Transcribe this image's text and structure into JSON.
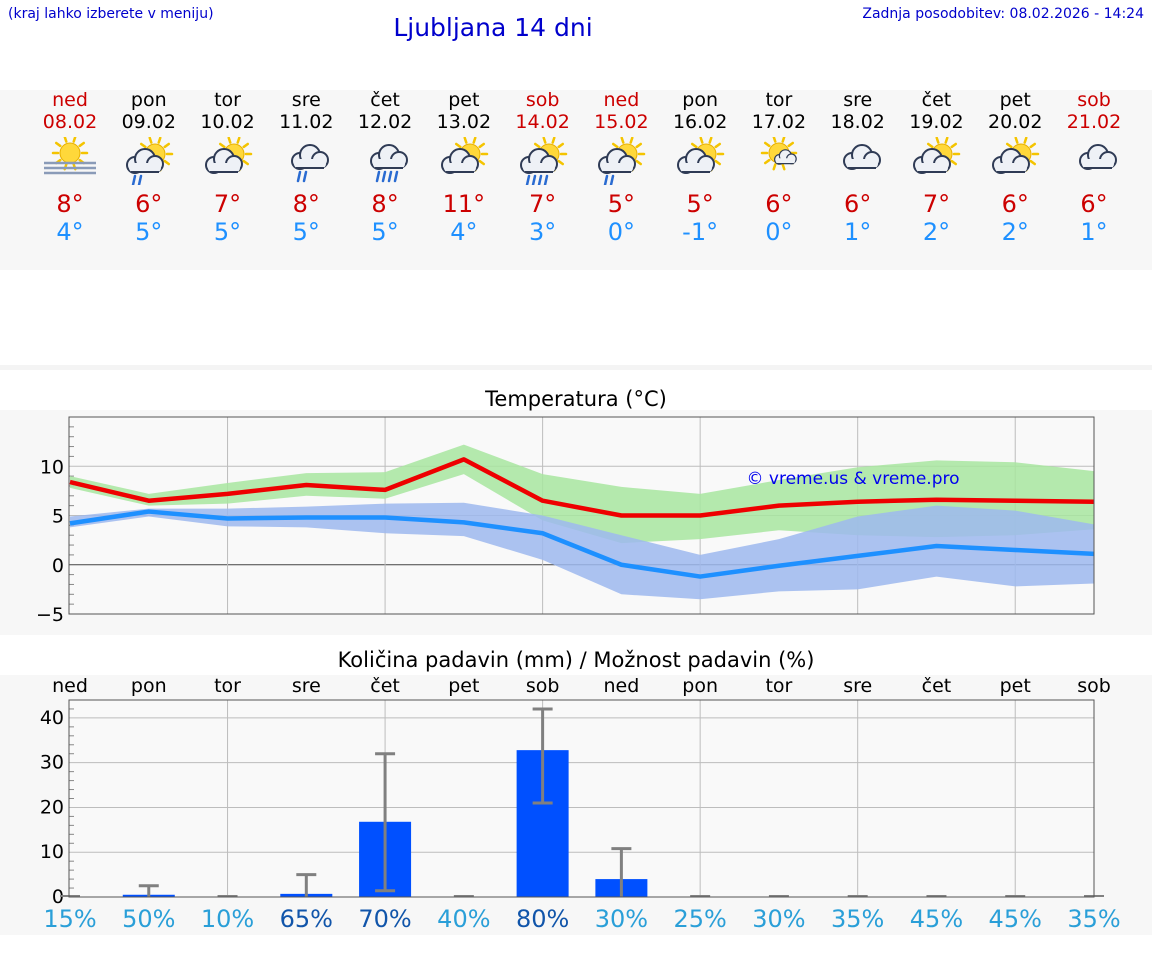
{
  "header": {
    "hint": "(kraj lahko izberete v meniju)",
    "title": "Ljubljana 14 dni",
    "updated": "Zadnja posodobitev: 08.02.2026 - 14:24"
  },
  "colors": {
    "weekend": "#cc0000",
    "max_line": "#ee0000",
    "min_line": "#1e90ff",
    "max_band": "#a8e6a0",
    "min_band": "#9db8ee",
    "bar": "#0050ff",
    "error": "#808080"
  },
  "days": [
    {
      "name": "ned",
      "date": "08.02",
      "weekend": true,
      "icon": "sun-fog-icon",
      "max": "8°",
      "min": "4°"
    },
    {
      "name": "pon",
      "date": "09.02",
      "weekend": false,
      "icon": "sun-cloud-rain-icon",
      "max": "6°",
      "min": "5°"
    },
    {
      "name": "tor",
      "date": "10.02",
      "weekend": false,
      "icon": "sun-cloud-icon",
      "max": "7°",
      "min": "5°"
    },
    {
      "name": "sre",
      "date": "11.02",
      "weekend": false,
      "icon": "cloud-rain-icon",
      "max": "8°",
      "min": "5°"
    },
    {
      "name": "čet",
      "date": "12.02",
      "weekend": false,
      "icon": "cloud-heavy-rain-icon",
      "max": "8°",
      "min": "5°"
    },
    {
      "name": "pet",
      "date": "13.02",
      "weekend": false,
      "icon": "sun-cloud-icon",
      "max": "11°",
      "min": "4°"
    },
    {
      "name": "sob",
      "date": "14.02",
      "weekend": true,
      "icon": "sun-cloud-heavy-rain-icon",
      "max": "7°",
      "min": "3°"
    },
    {
      "name": "ned",
      "date": "15.02",
      "weekend": true,
      "icon": "sun-cloud-rain-icon",
      "max": "5°",
      "min": "0°"
    },
    {
      "name": "pon",
      "date": "16.02",
      "weekend": false,
      "icon": "sun-cloud-icon",
      "max": "5°",
      "min": "-1°"
    },
    {
      "name": "tor",
      "date": "17.02",
      "weekend": false,
      "icon": "sun-small-cloud-icon",
      "max": "6°",
      "min": "0°"
    },
    {
      "name": "sre",
      "date": "18.02",
      "weekend": false,
      "icon": "cloud-icon",
      "max": "6°",
      "min": "1°"
    },
    {
      "name": "čet",
      "date": "19.02",
      "weekend": false,
      "icon": "sun-cloud-icon",
      "max": "7°",
      "min": "2°"
    },
    {
      "name": "pet",
      "date": "20.02",
      "weekend": false,
      "icon": "sun-cloud-icon",
      "max": "6°",
      "min": "2°"
    },
    {
      "name": "sob",
      "date": "21.02",
      "weekend": true,
      "icon": "cloud-icon",
      "max": "6°",
      "min": "1°"
    }
  ],
  "chart_data": [
    {
      "type": "line",
      "title": "Temperatura (°C)",
      "xlabel": "",
      "ylabel": "",
      "ylim": [
        -5,
        15
      ],
      "yticks": [
        -5,
        0,
        5,
        10
      ],
      "ytick_labels": [
        "−5",
        "0",
        "5",
        "10"
      ],
      "grid": true,
      "watermark": "© vreme.us & vreme.pro",
      "x": [
        "08.02",
        "09.02",
        "10.02",
        "11.02",
        "12.02",
        "13.02",
        "14.02",
        "15.02",
        "16.02",
        "17.02",
        "18.02",
        "19.02",
        "20.02",
        "21.02"
      ],
      "series": [
        {
          "name": "max",
          "values": [
            8.4,
            6.5,
            7.2,
            8.1,
            7.6,
            10.7,
            6.5,
            5.0,
            5.0,
            6.0,
            6.4,
            6.6,
            6.5,
            6.4
          ],
          "band_low": [
            7.8,
            6.0,
            6.2,
            7.0,
            6.7,
            9.2,
            4.5,
            2.2,
            2.6,
            3.5,
            3.0,
            2.8,
            3.0,
            3.6
          ],
          "band_high": [
            9.0,
            7.2,
            8.3,
            9.3,
            9.4,
            12.2,
            9.2,
            7.9,
            7.2,
            8.6,
            9.9,
            10.6,
            10.4,
            9.5
          ]
        },
        {
          "name": "min",
          "values": [
            4.2,
            5.4,
            4.7,
            4.8,
            4.8,
            4.3,
            3.2,
            0.0,
            -1.2,
            -0.1,
            0.9,
            1.9,
            1.5,
            1.1
          ],
          "band_low": [
            3.8,
            4.9,
            3.9,
            3.8,
            3.2,
            2.9,
            0.5,
            -3.0,
            -3.5,
            -2.7,
            -2.5,
            -1.2,
            -2.2,
            -1.9
          ],
          "band_high": [
            4.9,
            5.7,
            5.7,
            5.9,
            6.2,
            6.3,
            5.0,
            3.0,
            1.0,
            2.6,
            4.9,
            6.0,
            5.5,
            4.1
          ]
        }
      ]
    },
    {
      "type": "bar",
      "title": "Količina padavin (mm) / Možnost padavin (%)",
      "xlabel": "",
      "ylabel": "",
      "ylim": [
        0,
        44
      ],
      "yticks": [
        0,
        10,
        20,
        30,
        40
      ],
      "grid": true,
      "categories": [
        "ned",
        "pon",
        "tor",
        "sre",
        "čet",
        "pet",
        "sob",
        "ned",
        "pon",
        "tor",
        "sre",
        "čet",
        "pet",
        "sob"
      ],
      "values": [
        0,
        0.5,
        0,
        0.7,
        16.8,
        0,
        32.8,
        4.0,
        0,
        0,
        0,
        0,
        0,
        0
      ],
      "error_low": [
        0,
        0,
        0,
        0,
        1.4,
        0,
        21.0,
        0,
        0,
        0,
        0,
        0,
        0,
        0
      ],
      "error_high": [
        0,
        2.5,
        0,
        5.0,
        32.0,
        0,
        42.0,
        10.8,
        0,
        0,
        0,
        0,
        0,
        0
      ],
      "chance_labels": [
        "15%",
        "50%",
        "10%",
        "65%",
        "70%",
        "40%",
        "80%",
        "30%",
        "25%",
        "30%",
        "35%",
        "45%",
        "45%",
        "35%"
      ],
      "chance_values": [
        15,
        50,
        10,
        65,
        70,
        40,
        80,
        30,
        25,
        30,
        35,
        45,
        45,
        35
      ]
    }
  ]
}
